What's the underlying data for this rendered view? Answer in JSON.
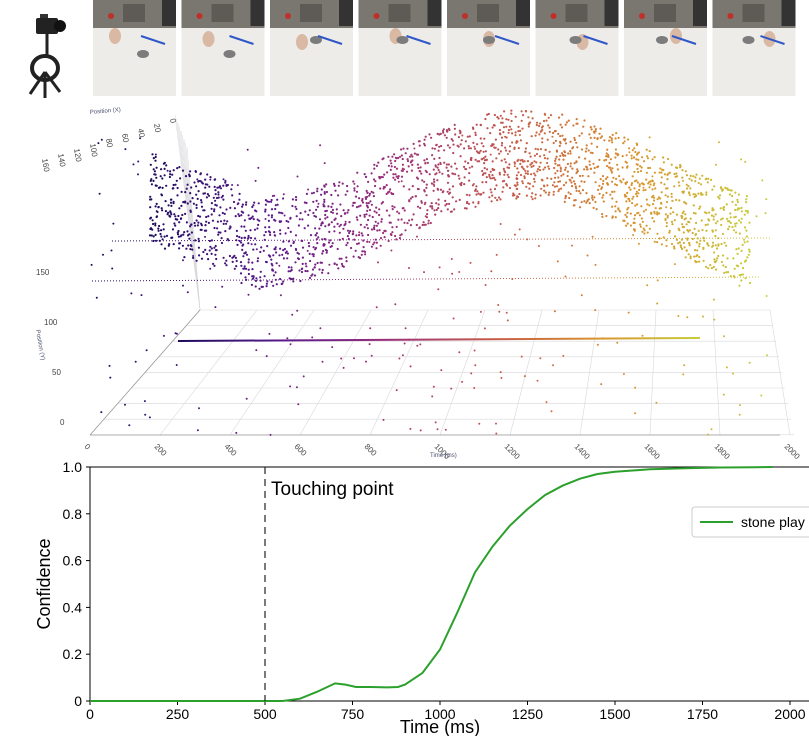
{
  "frames": {
    "count": 8
  },
  "scatter3d": {
    "axis_x_title": "Position (X)",
    "axis_x_ticks": [
      "0",
      "20",
      "40",
      "60",
      "80",
      "100",
      "120",
      "140",
      "160"
    ],
    "axis_y_title": "Position (Y)",
    "axis_y_ticks": [
      "0",
      "50",
      "100",
      "150"
    ],
    "axis_t_title": "Time (ms)",
    "axis_t_ticks": [
      "0",
      "200",
      "400",
      "600",
      "800",
      "1000",
      "1200",
      "1400",
      "1600",
      "1800",
      "2000"
    ],
    "colors": [
      "#1c0a5c",
      "#5a1a8a",
      "#9a2f7a",
      "#c45a4a",
      "#d8922e",
      "#c8cc3a"
    ]
  },
  "chart_data": {
    "type": "line",
    "title": "",
    "xlabel": "Time (ms)",
    "ylabel": "Confidence",
    "xlim": [
      0,
      2000
    ],
    "ylim": [
      0,
      1.0
    ],
    "xticks": [
      "0",
      "250",
      "500",
      "750",
      "1000",
      "1250",
      "1500",
      "1750",
      "2000"
    ],
    "yticks": [
      "0",
      "0.2",
      "0.4",
      "0.6",
      "0.8",
      "1.0"
    ],
    "annotation": {
      "label": "Touching point",
      "x": 500
    },
    "legend_position": "top-right",
    "series": [
      {
        "name": "stone play",
        "color": "#2ca02c",
        "x": [
          0,
          500,
          550,
          600,
          650,
          700,
          730,
          760,
          800,
          850,
          880,
          900,
          950,
          1000,
          1050,
          1100,
          1150,
          1200,
          1250,
          1300,
          1350,
          1400,
          1450,
          1500,
          1600,
          1700,
          1800,
          1900,
          1950
        ],
        "y": [
          0,
          0,
          0,
          0.01,
          0.04,
          0.075,
          0.07,
          0.06,
          0.06,
          0.058,
          0.06,
          0.07,
          0.12,
          0.22,
          0.38,
          0.55,
          0.66,
          0.75,
          0.82,
          0.88,
          0.92,
          0.95,
          0.97,
          0.98,
          0.99,
          0.995,
          0.998,
          0.999,
          1.0
        ]
      }
    ]
  }
}
